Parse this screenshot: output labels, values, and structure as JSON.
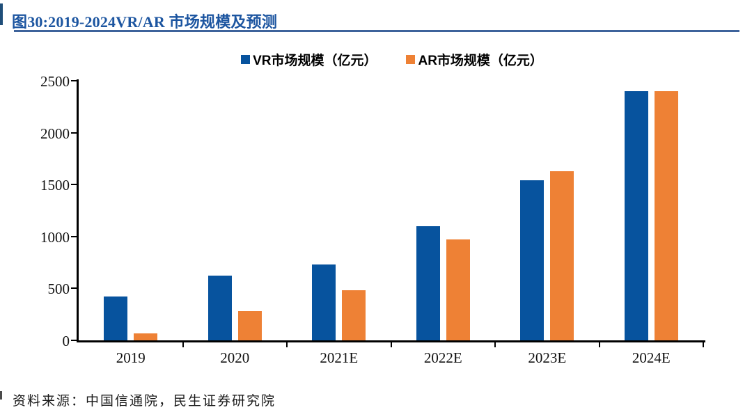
{
  "page": {
    "title": "图30:2019-2024VR/AR 市场规模及预测",
    "source": "资料来源：中国信通院，民生证券研究院"
  },
  "colors": {
    "title_text": "#1C55A0",
    "title_rule": "#3E639B",
    "vr_bar": "#07539E",
    "ar_bar": "#EE8135",
    "axis": "#000000"
  },
  "chart_data": {
    "type": "bar",
    "title": "图30:2019-2024VR/AR 市场规模及预测",
    "categories": [
      "2019",
      "2020",
      "2021E",
      "2022E",
      "2023E",
      "2024E"
    ],
    "series": [
      {
        "name": "VR市场规模（亿元）",
        "color": "#07539E",
        "values": [
          420,
          620,
          730,
          1100,
          1540,
          2400
        ]
      },
      {
        "name": "AR市场规模（亿元）",
        "color": "#EE8135",
        "values": [
          70,
          280,
          480,
          970,
          1630,
          2400
        ]
      }
    ],
    "xlabel": "",
    "ylabel": "",
    "ylim": [
      0,
      2500
    ],
    "yticks": [
      0,
      500,
      1000,
      1500,
      2000,
      2500
    ],
    "grid": false,
    "legend_position": "top-center"
  }
}
